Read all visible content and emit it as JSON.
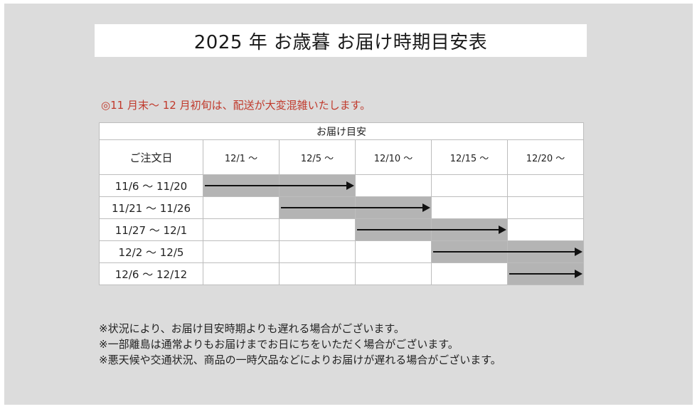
{
  "title": "2025 年 お歳暮 お届け時期目安表",
  "notice": "◎11 月末～ 12 月初旬は、配送が大変混雑いたします。",
  "colors": {
    "notice": "#c0392b",
    "panel": "#dcdcdc",
    "filled_cell": "#b4b4b4",
    "arrow": "#111111"
  },
  "table": {
    "delivery_header": "お届け目安",
    "order_header": "ご注文日",
    "delivery_columns": [
      "12/1 ～",
      "12/5 ～",
      "12/10 ～",
      "12/15 ～",
      "12/20 ～"
    ],
    "rows": [
      {
        "order": "11/6 ～ 11/20",
        "start_col": 0,
        "end_col": 1
      },
      {
        "order": "11/21 ～ 11/26",
        "start_col": 1,
        "end_col": 2
      },
      {
        "order": "11/27 ～ 12/1",
        "start_col": 2,
        "end_col": 3
      },
      {
        "order": "12/2 ～ 12/5",
        "start_col": 3,
        "end_col": 4
      },
      {
        "order": "12/6 ～ 12/12",
        "start_col": 4,
        "end_col": 4
      }
    ]
  },
  "footnotes": [
    "※状況により、お届け目安時期よりも遅れる場合がございます。",
    "※一部離島は通常よりもお届けまでお日にちをいただく場合がございます。",
    "※悪天候や交通状況、商品の一時欠品などによりお届けが遅れる場合がございます。"
  ]
}
